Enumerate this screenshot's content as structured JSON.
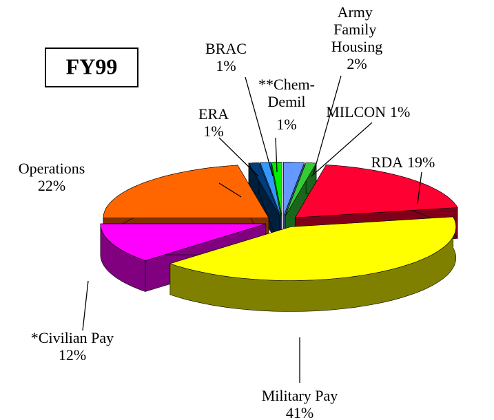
{
  "chart_data": {
    "type": "pie3d",
    "title": "FY99",
    "categories": [
      "Army Family Housing",
      "MILCON",
      "RDA",
      "Military Pay",
      "*Civilian Pay",
      "Operations",
      "ERA",
      "BRAC",
      "**Chem-Demil"
    ],
    "values": [
      2,
      1,
      19,
      41,
      12,
      22,
      1,
      1,
      1
    ],
    "value_labels": [
      "2%",
      "1%",
      "19%",
      "41%",
      "12%",
      "22%",
      "1%",
      "1%",
      "1%"
    ],
    "colors": [
      "#6699ff",
      "#33cc33",
      "#ff0033",
      "#ffff00",
      "#ff00ff",
      "#ff6600",
      "#003d7a",
      "#3399ff",
      "#00ee00"
    ]
  }
}
